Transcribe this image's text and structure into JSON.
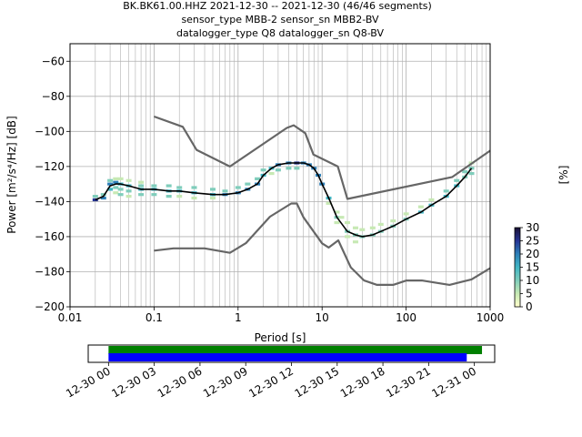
{
  "figure": {
    "title_lines": [
      "BK.BK61.00.HHZ   2021-12-30 -- 2021-12-30  (46/46 segments)",
      "sensor_type MBB-2 sensor_sn MBB2-BV",
      "datalogger_type Q8 datalogger_sn Q8-BV"
    ]
  },
  "chart_data": [
    {
      "type": "line",
      "title": "BK.BK61.00.HHZ   2021-12-30 -- 2021-12-30  (46/46 segments)",
      "xlabel": "Period [s]",
      "ylabel": "Power [m²/s⁴/Hz] [dB]",
      "xscale": "log",
      "xlim": [
        0.01,
        1000
      ],
      "ylim": [
        -200,
        -50
      ],
      "x_ticks": [
        0.01,
        0.1,
        1,
        10,
        100,
        1000
      ],
      "x_tick_labels": [
        "0.01",
        "0.1",
        "1",
        "10",
        "100",
        "1000"
      ],
      "y_ticks": [
        -200,
        -180,
        -160,
        -140,
        -120,
        -100,
        -80,
        -60
      ],
      "y_tick_labels": [
        "−200",
        "−180",
        "−160",
        "−140",
        "−120",
        "−100",
        "−80",
        "−60"
      ],
      "grid": true,
      "colorbar": {
        "label": "[%]",
        "min": 0,
        "max": 30,
        "ticks": [
          0,
          5,
          10,
          15,
          20,
          25,
          30
        ],
        "tick_labels": [
          "0",
          "5",
          "10",
          "15",
          "20",
          "25",
          "30"
        ],
        "colors": [
          "#ffffcc",
          "#c7e9b4",
          "#7fcdbb",
          "#41b6c4",
          "#2c7fb8",
          "#253494",
          "#1a1035"
        ]
      },
      "series": [
        {
          "role": "mode",
          "color": "#000000",
          "x": [
            0.02,
            0.025,
            0.03,
            0.035,
            0.04,
            0.05,
            0.07,
            0.1,
            0.15,
            0.2,
            0.3,
            0.5,
            0.7,
            1,
            1.3,
            1.7,
            2,
            2.5,
            3,
            4,
            5,
            6,
            7,
            8,
            9,
            10,
            12,
            15,
            20,
            25,
            30,
            40,
            50,
            70,
            100,
            150,
            200,
            300,
            400,
            500,
            600
          ],
          "y": [
            -139,
            -137,
            -131,
            -130,
            -130,
            -131,
            -133,
            -133,
            -134,
            -134,
            -135,
            -136,
            -136,
            -135,
            -133,
            -130,
            -125,
            -121,
            -119,
            -118,
            -118,
            -118,
            -119,
            -121,
            -125,
            -130,
            -138,
            -149,
            -157,
            -159,
            -160,
            -159,
            -157,
            -154,
            -150,
            -146,
            -142,
            -137,
            -131,
            -126,
            -121
          ]
        },
        {
          "role": "noise-model-upper",
          "color": "#666666",
          "x": [
            0.1,
            0.22,
            0.32,
            0.8,
            3.8,
            4.6,
            6.3,
            7.9,
            15.4,
            20,
            354.8,
            1000
          ],
          "y": [
            -91.5,
            -97.4,
            -110.5,
            -120,
            -98,
            -96.5,
            -101,
            -113.2,
            -120,
            -138.5,
            -126,
            -111
          ]
        },
        {
          "role": "noise-model-lower",
          "color": "#666666",
          "x": [
            0.1,
            0.17,
            0.4,
            0.8,
            1.24,
            2.4,
            4.3,
            5,
            6,
            10,
            12,
            15.6,
            21.9,
            31.6,
            45,
            70,
            101,
            154,
            328,
            600,
            1000
          ],
          "y": [
            -168,
            -166.7,
            -166.7,
            -169.2,
            -163.7,
            -148.6,
            -141.1,
            -141.1,
            -149,
            -163.8,
            -166.2,
            -162.1,
            -177.5,
            -185,
            -187.5,
            -187.5,
            -185,
            -185,
            -187.5,
            -184.4,
            -178
          ]
        }
      ],
      "histogram": [
        [
          0.02,
          -139,
          24
        ],
        [
          0.02,
          -137,
          12
        ],
        [
          0.025,
          -138,
          18
        ],
        [
          0.025,
          -136,
          10
        ],
        [
          0.03,
          -130,
          22
        ],
        [
          0.03,
          -133,
          14
        ],
        [
          0.03,
          -128,
          8
        ],
        [
          0.035,
          -129,
          18
        ],
        [
          0.035,
          -132,
          12
        ],
        [
          0.035,
          -127,
          6
        ],
        [
          0.035,
          -135,
          6
        ],
        [
          0.04,
          -130,
          16
        ],
        [
          0.04,
          -133,
          12
        ],
        [
          0.04,
          -127,
          6
        ],
        [
          0.04,
          -136,
          8
        ],
        [
          0.05,
          -131,
          15
        ],
        [
          0.05,
          -134,
          12
        ],
        [
          0.05,
          -128,
          6
        ],
        [
          0.05,
          -137,
          6
        ],
        [
          0.07,
          -133,
          15
        ],
        [
          0.07,
          -131,
          10
        ],
        [
          0.07,
          -136,
          8
        ],
        [
          0.07,
          -129,
          5
        ],
        [
          0.1,
          -133,
          16
        ],
        [
          0.1,
          -131,
          10
        ],
        [
          0.1,
          -136,
          8
        ],
        [
          0.15,
          -134,
          14
        ],
        [
          0.15,
          -131,
          10
        ],
        [
          0.15,
          -137,
          8
        ],
        [
          0.2,
          -134,
          16
        ],
        [
          0.2,
          -132,
          10
        ],
        [
          0.2,
          -137,
          6
        ],
        [
          0.3,
          -135,
          16
        ],
        [
          0.3,
          -132,
          8
        ],
        [
          0.3,
          -138,
          6
        ],
        [
          0.5,
          -136,
          16
        ],
        [
          0.5,
          -133,
          8
        ],
        [
          0.5,
          -138,
          6
        ],
        [
          0.7,
          -136,
          18
        ],
        [
          0.7,
          -134,
          8
        ],
        [
          1,
          -135,
          20
        ],
        [
          1,
          -132,
          8
        ],
        [
          1.3,
          -133,
          20
        ],
        [
          1.3,
          -130,
          8
        ],
        [
          1.7,
          -130,
          18
        ],
        [
          1.7,
          -127,
          8
        ],
        [
          2,
          -125,
          16
        ],
        [
          2,
          -122,
          8
        ],
        [
          2.5,
          -121,
          16
        ],
        [
          2.5,
          -124,
          6
        ],
        [
          3,
          -119,
          18
        ],
        [
          3,
          -122,
          8
        ],
        [
          4,
          -118,
          22
        ],
        [
          4,
          -121,
          8
        ],
        [
          5,
          -118,
          24
        ],
        [
          5,
          -121,
          8
        ],
        [
          6,
          -118,
          22
        ],
        [
          7,
          -119,
          20
        ],
        [
          8,
          -121,
          18
        ],
        [
          9,
          -125,
          18
        ],
        [
          10,
          -130,
          18
        ],
        [
          12,
          -138,
          16
        ],
        [
          12,
          -141,
          6
        ],
        [
          15,
          -149,
          12
        ],
        [
          15,
          -146,
          6
        ],
        [
          15,
          -152,
          6
        ],
        [
          17,
          -149,
          5
        ],
        [
          20,
          -157,
          10
        ],
        [
          20,
          -152,
          6
        ],
        [
          20,
          -160,
          4
        ],
        [
          25,
          -159,
          12
        ],
        [
          25,
          -155,
          6
        ],
        [
          25,
          -163,
          4
        ],
        [
          30,
          -160,
          12
        ],
        [
          30,
          -156,
          6
        ],
        [
          40,
          -159,
          12
        ],
        [
          40,
          -155,
          6
        ],
        [
          50,
          -157,
          12
        ],
        [
          50,
          -153,
          6
        ],
        [
          70,
          -154,
          12
        ],
        [
          70,
          -151,
          6
        ],
        [
          100,
          -150,
          12
        ],
        [
          100,
          -147,
          6
        ],
        [
          150,
          -146,
          14
        ],
        [
          150,
          -143,
          6
        ],
        [
          200,
          -142,
          14
        ],
        [
          200,
          -139,
          6
        ],
        [
          300,
          -137,
          14
        ],
        [
          300,
          -134,
          8
        ],
        [
          400,
          -131,
          14
        ],
        [
          400,
          -128,
          8
        ],
        [
          500,
          -126,
          12
        ],
        [
          500,
          -123,
          8
        ],
        [
          600,
          -121,
          12
        ],
        [
          600,
          -124,
          8
        ],
        [
          600,
          -118,
          6
        ]
      ]
    },
    {
      "type": "timeline",
      "xlim": [
        "2021-12-29 22:40",
        "2021-12-31 01:20"
      ],
      "tick_labels": [
        "12-30 00",
        "12-30 03",
        "12-30 06",
        "12-30 09",
        "12-30 12",
        "12-30 15",
        "12-30 18",
        "12-30 21",
        "12-31 00"
      ],
      "bars": [
        {
          "color": "#008000",
          "start": "2021-12-30 00:00",
          "end": "2021-12-31 00:30"
        },
        {
          "color": "#0000ff",
          "start": "2021-12-30 00:00",
          "end": "2021-12-30 23:30"
        }
      ]
    }
  ]
}
